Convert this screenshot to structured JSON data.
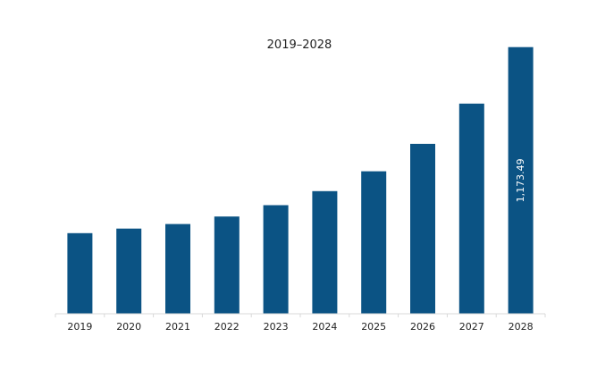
{
  "chart_data": {
    "type": "bar",
    "title": "2019–2028",
    "xlabel": "",
    "ylabel": "",
    "categories": [
      "2019",
      "2020",
      "2021",
      "2022",
      "2023",
      "2024",
      "2025",
      "2026",
      "2027",
      "2028"
    ],
    "values": [
      355,
      375,
      395,
      428,
      478,
      540,
      627,
      748,
      925,
      1173.49
    ],
    "data_labels": [
      "",
      "",
      "",
      "",
      "",
      "",
      "",
      "",
      "",
      "1,173.49"
    ],
    "ylim": [
      0,
      1200
    ],
    "grid": false,
    "legend": "none",
    "bar_color": "#0b5384"
  }
}
